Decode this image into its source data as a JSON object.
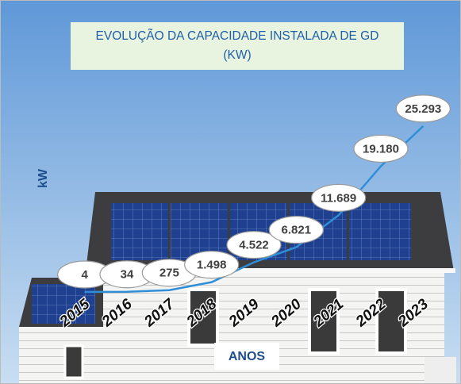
{
  "chart_data": {
    "type": "line",
    "title": "EVOLUÇÃO DA CAPACIDADE INSTALADA DE GD (KW)",
    "x_label": "ANOS",
    "y_label": "kW",
    "categories": [
      "2015",
      "2016",
      "2017",
      "2018",
      "2019",
      "2020",
      "2021",
      "2022",
      "2023"
    ],
    "values": [
      4,
      34,
      275,
      1498,
      4522,
      6821,
      11689,
      19180,
      25293
    ],
    "value_labels": [
      "4",
      "34",
      "275",
      "1.498",
      "4.522",
      "6.821",
      "11.689",
      "19.180",
      "25.293"
    ],
    "color": "#2f8fd6",
    "ylim": [
      0,
      30000
    ]
  }
}
